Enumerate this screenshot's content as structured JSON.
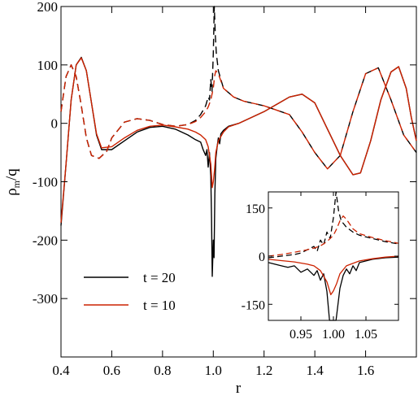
{
  "chart_data": [
    {
      "id": "main",
      "type": "line",
      "xlabel": "r",
      "ylabel_base": "ρ",
      "ylabel_sub": "m",
      "ylabel_tail": "/q",
      "xlim": [
        0.4,
        1.8
      ],
      "ylim": [
        -400,
        200
      ],
      "xticks": [
        0.4,
        0.6,
        0.8,
        1.0,
        1.2,
        1.4,
        1.6
      ],
      "xtick_labels": [
        "0.4",
        "0.6",
        "0.8",
        "1.0",
        "1.2",
        "1.4",
        "1.6"
      ],
      "yticks": [
        200,
        100,
        0,
        -100,
        -200,
        -300
      ],
      "ytick_labels": [
        "200",
        "100",
        "0",
        "-100",
        "-200",
        "-300"
      ],
      "legend": {
        "position": "lower-left",
        "entries": [
          {
            "label": "t = 20",
            "color": "#000000"
          },
          {
            "label": "t = 10",
            "color": "#cc2200"
          }
        ]
      },
      "series": [
        {
          "name": "t = 20",
          "style": "solid",
          "color": "#000000",
          "points": [
            [
              0.4,
              -175
            ],
            [
              0.42,
              -70
            ],
            [
              0.44,
              40
            ],
            [
              0.46,
              100
            ],
            [
              0.48,
              113
            ],
            [
              0.5,
              90
            ],
            [
              0.52,
              35
            ],
            [
              0.54,
              -20
            ],
            [
              0.56,
              -45
            ],
            [
              0.6,
              -45
            ],
            [
              0.65,
              -30
            ],
            [
              0.7,
              -15
            ],
            [
              0.75,
              -7
            ],
            [
              0.8,
              -5
            ],
            [
              0.85,
              -10
            ],
            [
              0.9,
              -20
            ],
            [
              0.93,
              -28
            ],
            [
              0.95,
              -32
            ],
            [
              0.96,
              -45
            ],
            [
              0.97,
              -55
            ],
            [
              0.975,
              -45
            ],
            [
              0.98,
              -75
            ],
            [
              0.985,
              -50
            ],
            [
              0.99,
              -90
            ],
            [
              0.993,
              -160
            ],
            [
              0.996,
              -262
            ],
            [
              1.0,
              -200
            ],
            [
              1.003,
              -230
            ],
            [
              1.006,
              -120
            ],
            [
              1.01,
              -60
            ],
            [
              1.015,
              -40
            ],
            [
              1.02,
              -25
            ],
            [
              1.025,
              -35
            ],
            [
              1.03,
              -18
            ],
            [
              1.04,
              -12
            ],
            [
              1.06,
              -5
            ],
            [
              1.1,
              0
            ],
            [
              1.2,
              20
            ],
            [
              1.3,
              45
            ],
            [
              1.35,
              50
            ],
            [
              1.4,
              35
            ],
            [
              1.45,
              -10
            ],
            [
              1.5,
              -55
            ],
            [
              1.55,
              -88
            ],
            [
              1.58,
              -85
            ],
            [
              1.62,
              -30
            ],
            [
              1.66,
              40
            ],
            [
              1.7,
              88
            ],
            [
              1.73,
              97
            ],
            [
              1.76,
              60
            ],
            [
              1.78,
              10
            ],
            [
              1.8,
              -30
            ]
          ]
        },
        {
          "name": "t = 20",
          "style": "dashed",
          "color": "#000000",
          "points": [
            [
              0.4,
              20
            ],
            [
              0.42,
              80
            ],
            [
              0.44,
              100
            ],
            [
              0.46,
              80
            ],
            [
              0.48,
              30
            ],
            [
              0.5,
              -25
            ],
            [
              0.52,
              -55
            ],
            [
              0.55,
              -60
            ],
            [
              0.58,
              -48
            ],
            [
              0.6,
              -25
            ],
            [
              0.65,
              2
            ],
            [
              0.7,
              8
            ],
            [
              0.75,
              5
            ],
            [
              0.8,
              -2
            ],
            [
              0.85,
              -5
            ],
            [
              0.9,
              -2
            ],
            [
              0.93,
              5
            ],
            [
              0.95,
              15
            ],
            [
              0.97,
              30
            ],
            [
              0.98,
              45
            ],
            [
              0.985,
              40
            ],
            [
              0.99,
              75
            ],
            [
              0.995,
              55
            ],
            [
              1.0,
              120
            ],
            [
              1.004,
              200
            ],
            [
              1.008,
              150
            ],
            [
              1.012,
              120
            ],
            [
              1.02,
              90
            ],
            [
              1.04,
              60
            ],
            [
              1.08,
              45
            ],
            [
              1.12,
              38
            ],
            [
              1.2,
              30
            ],
            [
              1.3,
              15
            ],
            [
              1.35,
              -15
            ],
            [
              1.4,
              -50
            ],
            [
              1.45,
              -78
            ],
            [
              1.5,
              -55
            ],
            [
              1.55,
              20
            ],
            [
              1.6,
              85
            ],
            [
              1.65,
              95
            ],
            [
              1.7,
              40
            ],
            [
              1.75,
              -20
            ],
            [
              1.8,
              -50
            ]
          ]
        },
        {
          "name": "t = 10",
          "style": "solid",
          "color": "#cc2200",
          "points": [
            [
              0.4,
              -170
            ],
            [
              0.42,
              -70
            ],
            [
              0.44,
              40
            ],
            [
              0.46,
              100
            ],
            [
              0.48,
              112
            ],
            [
              0.5,
              90
            ],
            [
              0.52,
              35
            ],
            [
              0.54,
              -18
            ],
            [
              0.56,
              -42
            ],
            [
              0.6,
              -40
            ],
            [
              0.65,
              -25
            ],
            [
              0.7,
              -12
            ],
            [
              0.75,
              -5
            ],
            [
              0.8,
              -3
            ],
            [
              0.85,
              -6
            ],
            [
              0.9,
              -10
            ],
            [
              0.93,
              -15
            ],
            [
              0.95,
              -20
            ],
            [
              0.97,
              -28
            ],
            [
              0.98,
              -40
            ],
            [
              0.99,
              -70
            ],
            [
              0.996,
              -110
            ],
            [
              1.0,
              -100
            ],
            [
              1.005,
              -80
            ],
            [
              1.01,
              -50
            ],
            [
              1.02,
              -30
            ],
            [
              1.04,
              -15
            ],
            [
              1.06,
              -6
            ],
            [
              1.1,
              0
            ],
            [
              1.2,
              20
            ],
            [
              1.3,
              45
            ],
            [
              1.35,
              50
            ],
            [
              1.4,
              35
            ],
            [
              1.45,
              -10
            ],
            [
              1.5,
              -55
            ],
            [
              1.55,
              -88
            ],
            [
              1.58,
              -85
            ],
            [
              1.62,
              -30
            ],
            [
              1.66,
              40
            ],
            [
              1.7,
              88
            ],
            [
              1.73,
              97
            ],
            [
              1.76,
              60
            ],
            [
              1.78,
              10
            ],
            [
              1.8,
              -30
            ]
          ]
        },
        {
          "name": "t = 10",
          "style": "dashed",
          "color": "#cc2200",
          "points": [
            [
              0.4,
              20
            ],
            [
              0.42,
              80
            ],
            [
              0.44,
              100
            ],
            [
              0.46,
              80
            ],
            [
              0.48,
              30
            ],
            [
              0.5,
              -25
            ],
            [
              0.52,
              -55
            ],
            [
              0.55,
              -60
            ],
            [
              0.58,
              -48
            ],
            [
              0.6,
              -25
            ],
            [
              0.65,
              2
            ],
            [
              0.7,
              8
            ],
            [
              0.75,
              5
            ],
            [
              0.8,
              -2
            ],
            [
              0.85,
              -5
            ],
            [
              0.9,
              -2
            ],
            [
              0.93,
              3
            ],
            [
              0.95,
              10
            ],
            [
              0.97,
              20
            ],
            [
              0.98,
              28
            ],
            [
              0.99,
              40
            ],
            [
              1.0,
              60
            ],
            [
              1.005,
              80
            ],
            [
              1.01,
              90
            ],
            [
              1.02,
              85
            ],
            [
              1.04,
              60
            ],
            [
              1.08,
              45
            ],
            [
              1.12,
              38
            ],
            [
              1.2,
              30
            ],
            [
              1.3,
              15
            ],
            [
              1.35,
              -15
            ],
            [
              1.4,
              -50
            ],
            [
              1.45,
              -78
            ],
            [
              1.5,
              -55
            ],
            [
              1.55,
              20
            ],
            [
              1.6,
              85
            ],
            [
              1.65,
              95
            ],
            [
              1.7,
              40
            ],
            [
              1.75,
              -20
            ],
            [
              1.8,
              -50
            ]
          ]
        }
      ]
    },
    {
      "id": "inset",
      "type": "line",
      "xlim": [
        0.9,
        1.1
      ],
      "ylim": [
        -200,
        200
      ],
      "xticks": [
        0.95,
        1.0,
        1.05
      ],
      "xtick_labels": [
        "0.95",
        "1.00",
        "1.05"
      ],
      "yticks": [
        150,
        0,
        -150
      ],
      "ytick_labels": [
        "150",
        "0",
        "-150"
      ],
      "series": [
        {
          "name": "t = 20",
          "style": "solid",
          "color": "#000000",
          "points": [
            [
              0.9,
              -20
            ],
            [
              0.91,
              -25
            ],
            [
              0.92,
              -30
            ],
            [
              0.93,
              -35
            ],
            [
              0.94,
              -30
            ],
            [
              0.95,
              -50
            ],
            [
              0.96,
              -40
            ],
            [
              0.97,
              -60
            ],
            [
              0.975,
              -45
            ],
            [
              0.98,
              -75
            ],
            [
              0.985,
              -55
            ],
            [
              0.99,
              -110
            ],
            [
              0.994,
              -200
            ],
            [
              0.997,
              -262
            ],
            [
              1.0,
              -220
            ],
            [
              1.004,
              -240
            ],
            [
              1.007,
              -150
            ],
            [
              1.01,
              -100
            ],
            [
              1.015,
              -60
            ],
            [
              1.02,
              -40
            ],
            [
              1.025,
              -55
            ],
            [
              1.03,
              -30
            ],
            [
              1.035,
              -45
            ],
            [
              1.04,
              -20
            ],
            [
              1.05,
              -15
            ],
            [
              1.06,
              -10
            ],
            [
              1.08,
              -5
            ],
            [
              1.1,
              -3
            ]
          ]
        },
        {
          "name": "t = 20",
          "style": "dashed",
          "color": "#000000",
          "points": [
            [
              0.9,
              -5
            ],
            [
              0.92,
              0
            ],
            [
              0.94,
              5
            ],
            [
              0.95,
              10
            ],
            [
              0.96,
              20
            ],
            [
              0.97,
              30
            ],
            [
              0.975,
              15
            ],
            [
              0.98,
              50
            ],
            [
              0.985,
              35
            ],
            [
              0.99,
              75
            ],
            [
              0.995,
              55
            ],
            [
              1.0,
              120
            ],
            [
              1.004,
              200
            ],
            [
              1.008,
              140
            ],
            [
              1.012,
              110
            ],
            [
              1.02,
              90
            ],
            [
              1.03,
              75
            ],
            [
              1.04,
              65
            ],
            [
              1.06,
              55
            ],
            [
              1.08,
              45
            ],
            [
              1.1,
              38
            ]
          ]
        },
        {
          "name": "t = 10",
          "style": "solid",
          "color": "#cc2200",
          "points": [
            [
              0.9,
              -10
            ],
            [
              0.92,
              -14
            ],
            [
              0.94,
              -18
            ],
            [
              0.96,
              -25
            ],
            [
              0.97,
              -30
            ],
            [
              0.98,
              -45
            ],
            [
              0.99,
              -80
            ],
            [
              0.996,
              -120
            ],
            [
              1.0,
              -108
            ],
            [
              1.005,
              -85
            ],
            [
              1.01,
              -55
            ],
            [
              1.02,
              -30
            ],
            [
              1.04,
              -15
            ],
            [
              1.06,
              -8
            ],
            [
              1.08,
              -3
            ],
            [
              1.1,
              0
            ]
          ]
        },
        {
          "name": "t = 10",
          "style": "dashed",
          "color": "#cc2200",
          "points": [
            [
              0.9,
              0
            ],
            [
              0.92,
              5
            ],
            [
              0.94,
              12
            ],
            [
              0.96,
              20
            ],
            [
              0.97,
              25
            ],
            [
              0.98,
              32
            ],
            [
              0.99,
              45
            ],
            [
              1.0,
              65
            ],
            [
              1.005,
              85
            ],
            [
              1.01,
              110
            ],
            [
              1.015,
              125
            ],
            [
              1.02,
              115
            ],
            [
              1.03,
              85
            ],
            [
              1.04,
              70
            ],
            [
              1.06,
              58
            ],
            [
              1.08,
              48
            ],
            [
              1.1,
              40
            ]
          ]
        }
      ]
    }
  ]
}
